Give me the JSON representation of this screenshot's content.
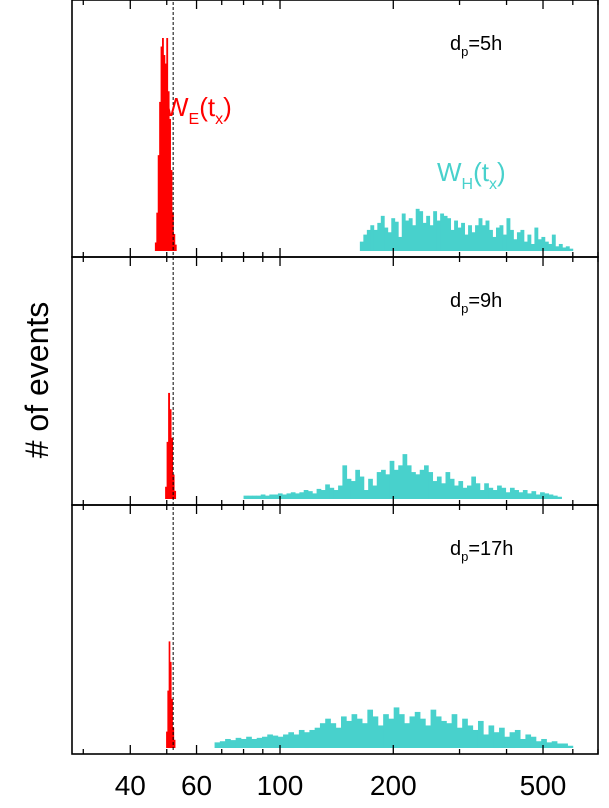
{
  "chart_data": {
    "type": "histogram",
    "xscale": "log",
    "xlim": [
      28,
      700
    ],
    "xticks": [
      40,
      60,
      100,
      200,
      500
    ],
    "xtick_labels": [
      "40",
      "60",
      "100",
      "200",
      "500"
    ],
    "ylabel": "# of events",
    "reference_x": 52,
    "colors": {
      "W_E": "#ff0000",
      "W_H": "#48d1cc"
    },
    "series_labels": {
      "W_E": {
        "main": "W",
        "sub1": "E",
        "mid": "(t",
        "sub2": "x",
        "end": ")"
      },
      "W_H": {
        "main": "W",
        "sub1": "H",
        "mid": "(t",
        "sub2": "x",
        "end": ")"
      }
    },
    "panels": [
      {
        "label": {
          "main": "d",
          "sub": "p",
          "rest": "=5h"
        },
        "W_E": {
          "x_start": 46.5,
          "x_end": 53.0,
          "values": [
            4,
            18,
            45,
            70,
            96,
            100,
            92,
            88,
            100,
            75,
            62,
            38,
            18,
            8,
            3
          ]
        },
        "W_H": {
          "x_start": 163,
          "x_end": 600,
          "values": [
            8,
            14,
            18,
            22,
            18,
            24,
            30,
            20,
            16,
            28,
            25,
            12,
            32,
            26,
            28,
            22,
            36,
            34,
            24,
            30,
            22,
            34,
            26,
            32,
            30,
            28,
            18,
            26,
            20,
            24,
            14,
            22,
            16,
            22,
            28,
            22,
            26,
            18,
            12,
            20,
            22,
            14,
            28,
            18,
            10,
            16,
            18,
            8,
            14,
            6,
            20,
            10,
            12,
            8,
            6,
            14,
            4,
            6,
            3,
            4,
            2
          ]
        }
      },
      {
        "label": {
          "main": "d",
          "sub": "p",
          "rest": "=9h"
        },
        "W_E": {
          "x_start": 49.5,
          "x_end": 52.8,
          "values": [
            6,
            28,
            52,
            44,
            30,
            12,
            4
          ]
        },
        "W_H": {
          "x_start": 80,
          "x_end": 560,
          "values": [
            3,
            3,
            3,
            3,
            4,
            3,
            4,
            4,
            5,
            4,
            5,
            6,
            5,
            6,
            8,
            7,
            5,
            9,
            8,
            13,
            10,
            8,
            12,
            30,
            18,
            16,
            26,
            20,
            8,
            18,
            12,
            24,
            26,
            22,
            34,
            26,
            30,
            40,
            30,
            24,
            22,
            26,
            30,
            24,
            16,
            20,
            14,
            24,
            18,
            12,
            16,
            10,
            12,
            20,
            14,
            8,
            14,
            10,
            8,
            12,
            10,
            6,
            10,
            8,
            6,
            8,
            5,
            7,
            4,
            6,
            5,
            4,
            3,
            2
          ]
        }
      },
      {
        "label": {
          "main": "d",
          "sub": "p",
          "rest": "=17h"
        },
        "W_E": {
          "x_start": 49.8,
          "x_end": 52.6,
          "values": [
            8,
            28,
            52,
            42,
            24,
            10,
            4
          ]
        },
        "W_H": {
          "x_start": 67,
          "x_end": 600,
          "values": [
            5,
            6,
            8,
            7,
            9,
            8,
            10,
            8,
            9,
            10,
            12,
            11,
            10,
            12,
            14,
            12,
            16,
            14,
            16,
            18,
            22,
            26,
            22,
            18,
            28,
            24,
            30,
            26,
            22,
            34,
            28,
            20,
            30,
            26,
            36,
            30,
            22,
            28,
            32,
            26,
            20,
            34,
            28,
            24,
            22,
            30,
            18,
            26,
            20,
            16,
            24,
            12,
            20,
            14,
            18,
            10,
            14,
            16,
            8,
            12,
            10,
            6,
            8,
            5,
            6,
            4,
            4,
            2
          ]
        }
      }
    ]
  }
}
